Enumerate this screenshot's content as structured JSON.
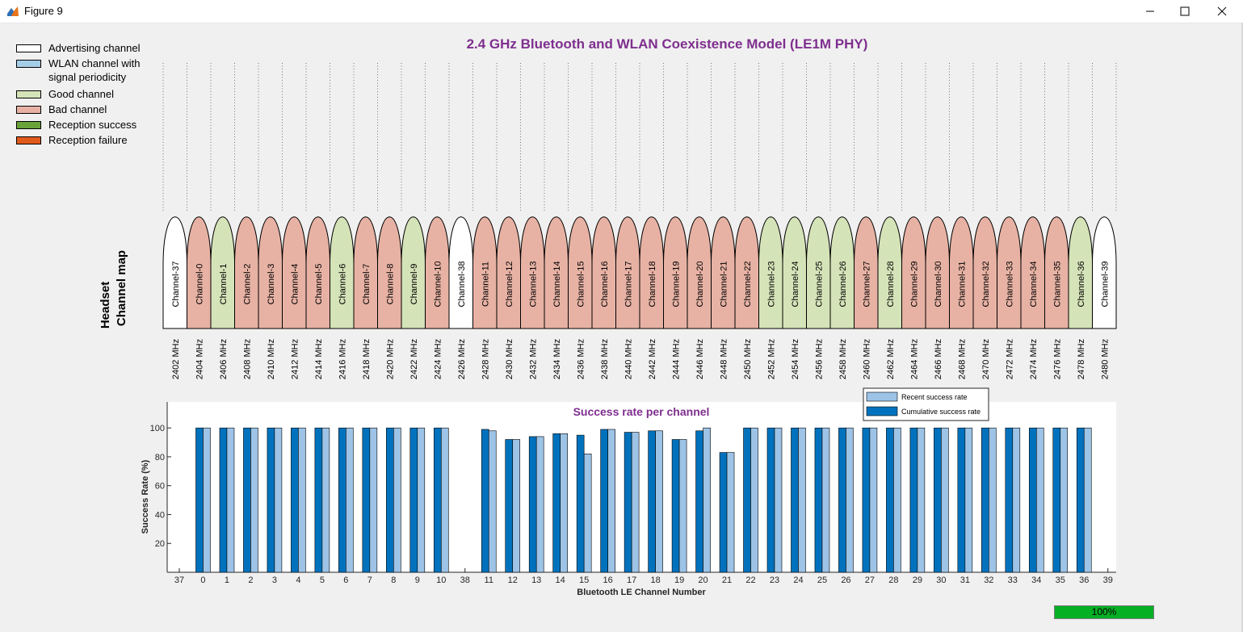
{
  "window": {
    "title": "Figure 9",
    "icons": [
      "matlab-icon",
      "minimize-icon",
      "maximize-icon",
      "close-icon"
    ]
  },
  "legend": [
    {
      "label": "Advertising channel",
      "color": "#ffffff"
    },
    {
      "label": "WLAN channel with signal periodicity",
      "color": "#a6cde8"
    },
    {
      "label": "Good channel",
      "color": "#d5e3b8"
    },
    {
      "label": "Bad channel",
      "color": "#e7b2a4"
    },
    {
      "label": "Reception success",
      "color": "#6aa23a"
    },
    {
      "label": "Reception failure",
      "color": "#e05a1c"
    }
  ],
  "channel_map": {
    "title": "2.4 GHz Bluetooth and WLAN Coexistence Model (LE1M PHY)",
    "ylabel_line1": "Headset",
    "ylabel_line2": "Channel map",
    "channels": [
      {
        "label": "Channel-37",
        "freq": "2402 MHz",
        "status": "advertising"
      },
      {
        "label": "Channel-0",
        "freq": "2404 MHz",
        "status": "bad"
      },
      {
        "label": "Channel-1",
        "freq": "2406 MHz",
        "status": "good"
      },
      {
        "label": "Channel-2",
        "freq": "2408 MHz",
        "status": "bad"
      },
      {
        "label": "Channel-3",
        "freq": "2410 MHz",
        "status": "bad"
      },
      {
        "label": "Channel-4",
        "freq": "2412 MHz",
        "status": "bad"
      },
      {
        "label": "Channel-5",
        "freq": "2414 MHz",
        "status": "bad"
      },
      {
        "label": "Channel-6",
        "freq": "2416 MHz",
        "status": "good"
      },
      {
        "label": "Channel-7",
        "freq": "2418 MHz",
        "status": "bad"
      },
      {
        "label": "Channel-8",
        "freq": "2420 MHz",
        "status": "bad"
      },
      {
        "label": "Channel-9",
        "freq": "2422 MHz",
        "status": "good"
      },
      {
        "label": "Channel-10",
        "freq": "2424 MHz",
        "status": "bad"
      },
      {
        "label": "Channel-38",
        "freq": "2426 MHz",
        "status": "advertising"
      },
      {
        "label": "Channel-11",
        "freq": "2428 MHz",
        "status": "bad"
      },
      {
        "label": "Channel-12",
        "freq": "2430 MHz",
        "status": "bad"
      },
      {
        "label": "Channel-13",
        "freq": "2432 MHz",
        "status": "bad"
      },
      {
        "label": "Channel-14",
        "freq": "2434 MHz",
        "status": "bad"
      },
      {
        "label": "Channel-15",
        "freq": "2436 MHz",
        "status": "bad"
      },
      {
        "label": "Channel-16",
        "freq": "2438 MHz",
        "status": "bad"
      },
      {
        "label": "Channel-17",
        "freq": "2440 MHz",
        "status": "bad"
      },
      {
        "label": "Channel-18",
        "freq": "2442 MHz",
        "status": "bad"
      },
      {
        "label": "Channel-19",
        "freq": "2444 MHz",
        "status": "bad"
      },
      {
        "label": "Channel-20",
        "freq": "2446 MHz",
        "status": "bad"
      },
      {
        "label": "Channel-21",
        "freq": "2448 MHz",
        "status": "bad"
      },
      {
        "label": "Channel-22",
        "freq": "2450 MHz",
        "status": "bad"
      },
      {
        "label": "Channel-23",
        "freq": "2452 MHz",
        "status": "good"
      },
      {
        "label": "Channel-24",
        "freq": "2454 MHz",
        "status": "good"
      },
      {
        "label": "Channel-25",
        "freq": "2456 MHz",
        "status": "good"
      },
      {
        "label": "Channel-26",
        "freq": "2458 MHz",
        "status": "good"
      },
      {
        "label": "Channel-27",
        "freq": "2460 MHz",
        "status": "bad"
      },
      {
        "label": "Channel-28",
        "freq": "2462 MHz",
        "status": "good"
      },
      {
        "label": "Channel-29",
        "freq": "2464 MHz",
        "status": "bad"
      },
      {
        "label": "Channel-30",
        "freq": "2466 MHz",
        "status": "bad"
      },
      {
        "label": "Channel-31",
        "freq": "2468 MHz",
        "status": "bad"
      },
      {
        "label": "Channel-32",
        "freq": "2470 MHz",
        "status": "bad"
      },
      {
        "label": "Channel-33",
        "freq": "2472 MHz",
        "status": "bad"
      },
      {
        "label": "Channel-34",
        "freq": "2474 MHz",
        "status": "bad"
      },
      {
        "label": "Channel-35",
        "freq": "2476 MHz",
        "status": "bad"
      },
      {
        "label": "Channel-36",
        "freq": "2478 MHz",
        "status": "good"
      },
      {
        "label": "Channel-39",
        "freq": "2480 MHz",
        "status": "advertising"
      }
    ]
  },
  "chart_data": {
    "type": "bar",
    "title": "Success rate per channel",
    "xlabel": "Bluetooth LE Channel Number",
    "ylabel": "Success Rate (%)",
    "ylim": [
      0,
      118
    ],
    "yticks": [
      20,
      40,
      60,
      80,
      100
    ],
    "grid": false,
    "legend_position": "top-right",
    "categories": [
      "37",
      "0",
      "1",
      "2",
      "3",
      "4",
      "5",
      "6",
      "7",
      "8",
      "9",
      "10",
      "38",
      "11",
      "12",
      "13",
      "14",
      "15",
      "16",
      "17",
      "18",
      "19",
      "20",
      "21",
      "22",
      "23",
      "24",
      "25",
      "26",
      "27",
      "28",
      "29",
      "30",
      "31",
      "32",
      "33",
      "34",
      "35",
      "36",
      "39"
    ],
    "series": [
      {
        "name": "Recent success rate",
        "color": "#9dc3e6",
        "values": [
          null,
          100,
          100,
          100,
          100,
          100,
          100,
          100,
          100,
          100,
          100,
          100,
          null,
          98,
          92,
          94,
          96,
          82,
          99,
          97,
          98,
          92,
          100,
          83,
          100,
          100,
          100,
          100,
          100,
          100,
          100,
          100,
          100,
          100,
          100,
          100,
          100,
          100,
          100,
          null
        ]
      },
      {
        "name": "Cumulative success rate",
        "color": "#0072bd",
        "values": [
          null,
          100,
          100,
          100,
          100,
          100,
          100,
          100,
          100,
          100,
          100,
          100,
          null,
          99,
          92,
          94,
          96,
          95,
          99,
          97,
          98,
          92,
          98,
          83,
          100,
          100,
          100,
          100,
          100,
          100,
          100,
          100,
          100,
          100,
          100,
          100,
          100,
          100,
          100,
          null
        ]
      }
    ]
  },
  "progress": {
    "value": 1.0,
    "label": "100%"
  }
}
